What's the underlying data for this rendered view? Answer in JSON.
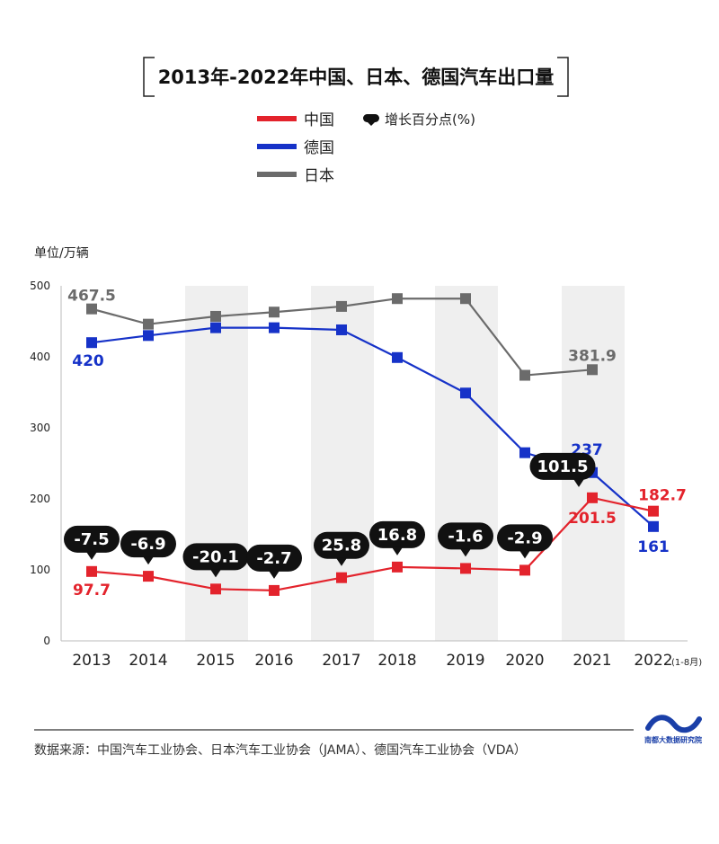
{
  "chart_data": {
    "type": "line",
    "title": "2013年-2022年中国、日本、德国汽车出口量",
    "ylabel": "单位/万辆",
    "ylim": [
      0,
      500
    ],
    "yticks": [
      0,
      100,
      200,
      300,
      400,
      500
    ],
    "categories": [
      "2013",
      "2014",
      "2015",
      "2016",
      "2017",
      "2018",
      "2019",
      "2020",
      "2021",
      "2022"
    ],
    "x_note_last": "(1-8月)",
    "grid": false,
    "legend": {
      "placement": "top-center",
      "growth_label": "增长百分点(%)"
    },
    "colors": {
      "china": "#e3232c",
      "germany": "#1632c8",
      "japan": "#6b6b6b",
      "band": "#efefef"
    },
    "series": [
      {
        "key": "china",
        "name": "中国",
        "color": "#e3232c",
        "values": [
          97.7,
          91,
          73,
          71,
          89,
          104,
          102,
          99.5,
          201.5,
          182.7
        ],
        "value_labels": [
          "97.7",
          "",
          "",
          "",
          "",
          "",
          "",
          "",
          "201.5",
          "182.7"
        ],
        "growth": [
          "-7.5",
          "-6.9",
          "-20.1",
          "-2.7",
          "25.8",
          "16.8",
          "-1.6",
          "-2.9",
          "101.5",
          ""
        ]
      },
      {
        "key": "germany",
        "name": "德国",
        "color": "#1632c8",
        "values": [
          420,
          430,
          441,
          441,
          438,
          399,
          349,
          265,
          237,
          161
        ],
        "value_labels": [
          "420",
          "",
          "",
          "",
          "",
          "",
          "",
          "",
          "237",
          "161"
        ]
      },
      {
        "key": "japan",
        "name": "日本",
        "color": "#6b6b6b",
        "values": [
          467.5,
          446,
          457,
          463,
          471,
          482,
          482,
          374,
          381.9,
          null
        ],
        "value_labels": [
          "467.5",
          "",
          "",
          "",
          "",
          "",
          "",
          "",
          "381.9",
          ""
        ]
      }
    ]
  },
  "footer": {
    "source": "数据来源：中国汽车工业协会、日本汽车工业协会（JAMA）、德国汽车工业协会（VDA）",
    "logo_text": "南都大数据研究院"
  }
}
